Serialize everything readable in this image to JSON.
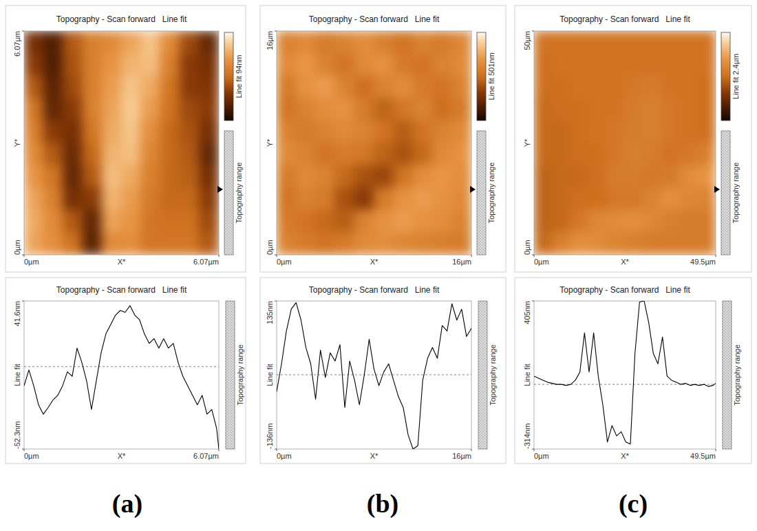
{
  "chart_data": [
    {
      "type": "heatmap",
      "panel": "(a)",
      "title": "Topography - Scan forward   Line fit",
      "x_label": "X*",
      "y_label": "Y*",
      "xlim": [
        0,
        6.07
      ],
      "ylim": [
        0,
        6.07
      ],
      "xticks": [
        {
          "value": 0,
          "label": "0µm"
        },
        {
          "value": 6.07,
          "label": "6.07µm"
        }
      ],
      "yticks": [
        {
          "value": 0,
          "label": "0µm"
        },
        {
          "value": 6.07,
          "label": "6.07µm"
        }
      ],
      "colorbar_label": "Line fit 94nm",
      "colorbar_range": [
        0,
        94
      ],
      "range_label": "Topography range",
      "cells": [
        [
          25,
          15,
          40,
          55,
          60,
          70,
          80,
          60,
          35,
          20
        ],
        [
          30,
          15,
          38,
          55,
          65,
          75,
          78,
          55,
          30,
          25
        ],
        [
          40,
          18,
          35,
          55,
          68,
          80,
          72,
          50,
          30,
          28
        ],
        [
          50,
          20,
          30,
          55,
          70,
          82,
          68,
          48,
          35,
          30
        ],
        [
          55,
          30,
          25,
          50,
          72,
          80,
          62,
          45,
          38,
          25
        ],
        [
          60,
          40,
          22,
          45,
          75,
          78,
          58,
          45,
          40,
          20
        ],
        [
          65,
          50,
          20,
          40,
          78,
          72,
          55,
          45,
          42,
          25
        ],
        [
          70,
          55,
          25,
          30,
          75,
          68,
          52,
          45,
          45,
          30
        ],
        [
          72,
          60,
          40,
          20,
          70,
          65,
          50,
          48,
          48,
          35
        ],
        [
          70,
          62,
          48,
          18,
          60,
          62,
          50,
          50,
          50,
          40
        ]
      ]
    },
    {
      "type": "line",
      "title": "Topography - Scan forward   Line fit",
      "x_label": "X*",
      "y_label": "Line fit",
      "range_label": "Topography range",
      "xlim": [
        0,
        6.07
      ],
      "ylim": [
        -52.3,
        41.6
      ],
      "xticks": [
        {
          "value": 0,
          "label": "0µm"
        },
        {
          "value": 6.07,
          "label": "6.07µm"
        }
      ],
      "yticks": [
        {
          "value": -52.3,
          "label": "-52.3nm"
        },
        {
          "value": 41.6,
          "label": "41.6nm"
        }
      ],
      "reference_line": 0,
      "x": [
        0,
        0.15,
        0.3,
        0.45,
        0.6,
        0.75,
        0.9,
        1.05,
        1.2,
        1.35,
        1.5,
        1.65,
        1.8,
        1.95,
        2.1,
        2.25,
        2.4,
        2.55,
        2.7,
        2.85,
        3,
        3.15,
        3.3,
        3.45,
        3.6,
        3.75,
        3.9,
        4.05,
        4.2,
        4.35,
        4.5,
        4.65,
        4.8,
        4.95,
        5.1,
        5.25,
        5.4,
        5.55,
        5.7,
        5.85,
        6,
        6.07
      ],
      "values": [
        -12.2,
        -2.1,
        -12.2,
        -24.2,
        -30.2,
        -26,
        -21.2,
        -18.2,
        -12.2,
        -3.3,
        -6.2,
        11.7,
        2.7,
        -9.2,
        -27.2,
        -9.2,
        8.7,
        20.7,
        26.6,
        32.6,
        35.6,
        34.4,
        38.6,
        32.6,
        29.6,
        20.7,
        14.7,
        17.7,
        11.7,
        17.7,
        11.7,
        14.7,
        2.7,
        -6.2,
        -12.2,
        -18.2,
        -24.2,
        -18.2,
        -30.2,
        -27.2,
        -39.1,
        -52.3
      ],
      "color": "#000000"
    },
    {
      "type": "heatmap",
      "panel": "(b)",
      "title": "Topography - Scan forward   Line fit",
      "x_label": "X*",
      "y_label": "Y*",
      "xlim": [
        0,
        16
      ],
      "ylim": [
        0,
        16
      ],
      "xticks": [
        {
          "value": 0,
          "label": "0µm"
        },
        {
          "value": 16,
          "label": "16µm"
        }
      ],
      "yticks": [
        {
          "value": 0,
          "label": "0µm"
        },
        {
          "value": 16,
          "label": "16µm"
        }
      ],
      "colorbar_label": "Line fit 501nm",
      "colorbar_range": [
        0,
        501
      ],
      "range_label": "Topography range",
      "cells": [
        [
          300,
          320,
          280,
          300,
          330,
          290,
          260,
          300,
          280,
          310
        ],
        [
          320,
          350,
          300,
          260,
          320,
          340,
          280,
          260,
          300,
          320
        ],
        [
          280,
          340,
          360,
          300,
          250,
          300,
          330,
          280,
          260,
          300
        ],
        [
          260,
          300,
          330,
          340,
          280,
          230,
          270,
          300,
          250,
          280
        ],
        [
          300,
          280,
          300,
          320,
          300,
          260,
          220,
          260,
          300,
          320
        ],
        [
          320,
          300,
          260,
          280,
          270,
          230,
          200,
          240,
          320,
          340
        ],
        [
          280,
          320,
          300,
          240,
          200,
          180,
          260,
          330,
          350,
          330
        ],
        [
          260,
          300,
          280,
          200,
          160,
          280,
          340,
          360,
          340,
          320
        ],
        [
          280,
          260,
          240,
          220,
          300,
          340,
          360,
          340,
          330,
          300
        ],
        [
          300,
          280,
          260,
          280,
          320,
          330,
          310,
          300,
          290,
          280
        ]
      ]
    },
    {
      "type": "line",
      "title": "Topography - Scan forward   Line fit",
      "x_label": "X*",
      "y_label": "Line fit",
      "range_label": "Topography range",
      "xlim": [
        0,
        16
      ],
      "ylim": [
        -136,
        135
      ],
      "xticks": [
        {
          "value": 0,
          "label": "0µm"
        },
        {
          "value": 16,
          "label": "16µm"
        }
      ],
      "yticks": [
        {
          "value": -136,
          "label": "-136nm"
        },
        {
          "value": 135,
          "label": "135nm"
        }
      ],
      "reference_line": 0,
      "x": [
        0,
        0.4,
        0.8,
        1.2,
        1.6,
        2,
        2.4,
        2.8,
        3.2,
        3.6,
        4,
        4.4,
        4.8,
        5.2,
        5.6,
        6,
        6.4,
        6.8,
        7.2,
        7.6,
        8,
        8.4,
        8.8,
        9.2,
        9.6,
        10,
        10.4,
        10.8,
        11.2,
        11.6,
        12,
        12.4,
        12.8,
        13.2,
        13.6,
        14,
        14.4,
        14.8,
        15.2,
        15.6,
        16
      ],
      "values": [
        -31,
        20,
        80,
        120,
        132,
        100,
        50,
        20,
        -45,
        45,
        -5,
        40,
        25,
        55,
        -60,
        25,
        -10,
        -55,
        0,
        65,
        10,
        -20,
        5,
        20,
        -10,
        -40,
        -60,
        -110,
        -136,
        -130,
        -10,
        30,
        50,
        30,
        90,
        80,
        130,
        100,
        120,
        70,
        85
      ],
      "color": "#000000"
    },
    {
      "type": "heatmap",
      "panel": "(c)",
      "title": "Topography - Scan forward   Line fit",
      "x_label": "X*",
      "y_label": "Y*",
      "xlim": [
        0,
        49.5
      ],
      "ylim": [
        0,
        50
      ],
      "xticks": [
        {
          "value": 0,
          "label": "0µm"
        },
        {
          "value": 49.5,
          "label": "49.5µm"
        }
      ],
      "yticks": [
        {
          "value": 0,
          "label": "0µm"
        },
        {
          "value": 50,
          "label": "50µm"
        }
      ],
      "colorbar_label": "Line fit 2.4µm",
      "colorbar_range": [
        0,
        2400
      ],
      "range_label": "Topography range",
      "cells": [
        [
          1250,
          1250,
          1250,
          1250,
          1250,
          1250,
          1250,
          1250,
          1250,
          1250
        ],
        [
          1200,
          1250,
          1250,
          1250,
          1250,
          1250,
          1250,
          1250,
          1250,
          1250
        ],
        [
          1200,
          1200,
          1250,
          1250,
          1250,
          1300,
          1350,
          1250,
          1250,
          1200
        ],
        [
          1150,
          1200,
          1200,
          1250,
          1250,
          1350,
          1400,
          1300,
          1250,
          1200
        ],
        [
          1150,
          1150,
          1200,
          1250,
          1300,
          1350,
          1400,
          1300,
          1250,
          1200
        ],
        [
          1150,
          1150,
          1200,
          1200,
          1300,
          1400,
          1350,
          1250,
          1300,
          1400
        ],
        [
          1100,
          1150,
          1150,
          1200,
          1350,
          1350,
          1300,
          1350,
          1550,
          1650
        ],
        [
          1100,
          1150,
          1200,
          1200,
          1300,
          1300,
          1450,
          1600,
          1500,
          1450
        ],
        [
          1100,
          1150,
          1300,
          1500,
          1550,
          1600,
          1500,
          1400,
          1350,
          1350
        ],
        [
          1150,
          1400,
          1600,
          1550,
          1450,
          1400,
          1350,
          1350,
          1350,
          1350
        ]
      ]
    },
    {
      "type": "line",
      "title": "Topography - Scan forward   Line fit",
      "x_label": "X*",
      "y_label": "Line fit",
      "range_label": "Topography range",
      "xlim": [
        0,
        49.5
      ],
      "ylim": [
        -314,
        405
      ],
      "xticks": [
        {
          "value": 0,
          "label": "0µm"
        },
        {
          "value": 49.5,
          "label": "49.5µm"
        }
      ],
      "yticks": [
        {
          "value": -314,
          "label": "-314nm"
        },
        {
          "value": 405,
          "label": "405nm"
        }
      ],
      "reference_line": 0,
      "x": [
        0,
        1.25,
        2.5,
        3.75,
        5,
        6.25,
        7.5,
        8.75,
        10,
        11.25,
        12.5,
        13.75,
        15,
        16.25,
        17.5,
        18.75,
        20,
        21.25,
        22.5,
        23.75,
        25,
        26.25,
        27.5,
        28.75,
        30,
        31.25,
        32.5,
        33.75,
        35,
        36.25,
        37.5,
        38.75,
        40,
        41.25,
        42.5,
        43.75,
        45,
        46.25,
        47.5,
        48.75,
        49.5
      ],
      "values": [
        40,
        30,
        20,
        10,
        5,
        0,
        0,
        -5,
        0,
        20,
        60,
        250,
        60,
        250,
        40,
        -100,
        -280,
        -200,
        -250,
        -230,
        -280,
        -290,
        150,
        400,
        405,
        300,
        150,
        100,
        230,
        40,
        20,
        10,
        0,
        5,
        -5,
        0,
        -5,
        0,
        -10,
        -5,
        5
      ],
      "color": "#000000"
    }
  ]
}
